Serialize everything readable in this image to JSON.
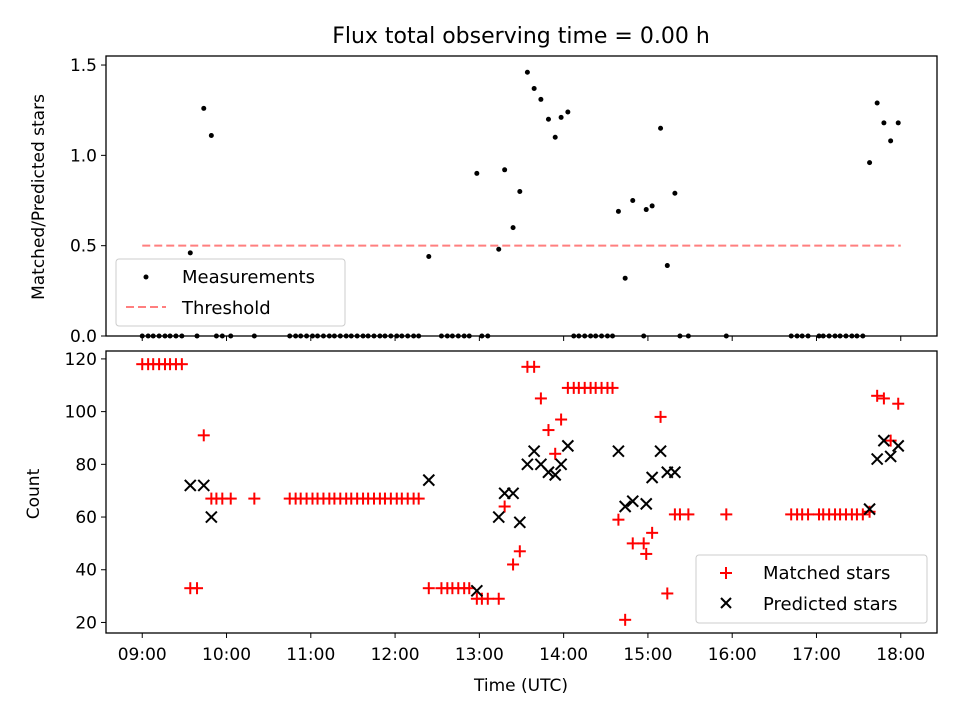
{
  "chart_data": [
    {
      "type": "scatter",
      "title": "Flux total observing time = 0.00 h",
      "xlabel": "",
      "ylabel": "Matched/Predicted stars",
      "xlim": [
        8.57,
        18.43
      ],
      "ylim": [
        0,
        1.55
      ],
      "x_tick_values": [
        9,
        10,
        11,
        12,
        13,
        14,
        15,
        16,
        17,
        18
      ],
      "y_ticks": [
        {
          "value": 0.0,
          "label": "0.0"
        },
        {
          "value": 0.5,
          "label": "0.5"
        },
        {
          "value": 1.0,
          "label": "1.0"
        },
        {
          "value": 1.5,
          "label": "1.5"
        }
      ],
      "grid": false,
      "legend_position": "lower-left",
      "legend": [
        {
          "label": "Measurements",
          "color": "#000000",
          "marker": "dot"
        },
        {
          "label": "Threshold",
          "color": "#ff7f7f",
          "marker": "dashed-line"
        }
      ],
      "threshold": {
        "value": 0.5,
        "x_range": [
          9,
          18
        ],
        "color": "#ff7f7f"
      },
      "series": [
        {
          "name": "Measurements",
          "color": "#000000",
          "points": [
            [
              9.0,
              0
            ],
            [
              9.07,
              0
            ],
            [
              9.13,
              0
            ],
            [
              9.2,
              0
            ],
            [
              9.27,
              0
            ],
            [
              9.33,
              0
            ],
            [
              9.4,
              0
            ],
            [
              9.47,
              0
            ],
            [
              9.57,
              0.46
            ],
            [
              9.65,
              0
            ],
            [
              9.73,
              1.26
            ],
            [
              9.82,
              1.11
            ],
            [
              9.88,
              0
            ],
            [
              9.95,
              0
            ],
            [
              10.05,
              0
            ],
            [
              10.33,
              0
            ],
            [
              10.75,
              0
            ],
            [
              10.82,
              0
            ],
            [
              10.88,
              0
            ],
            [
              10.95,
              0
            ],
            [
              11.02,
              0
            ],
            [
              11.08,
              0
            ],
            [
              11.15,
              0
            ],
            [
              11.22,
              0
            ],
            [
              11.28,
              0
            ],
            [
              11.35,
              0
            ],
            [
              11.42,
              0
            ],
            [
              11.48,
              0
            ],
            [
              11.55,
              0
            ],
            [
              11.62,
              0
            ],
            [
              11.68,
              0
            ],
            [
              11.75,
              0
            ],
            [
              11.82,
              0
            ],
            [
              11.88,
              0
            ],
            [
              11.95,
              0
            ],
            [
              12.02,
              0
            ],
            [
              12.08,
              0
            ],
            [
              12.15,
              0
            ],
            [
              12.22,
              0
            ],
            [
              12.28,
              0
            ],
            [
              12.4,
              0.44
            ],
            [
              12.55,
              0
            ],
            [
              12.62,
              0
            ],
            [
              12.68,
              0
            ],
            [
              12.75,
              0
            ],
            [
              12.82,
              0
            ],
            [
              12.88,
              0
            ],
            [
              12.97,
              0.9
            ],
            [
              13.03,
              0
            ],
            [
              13.1,
              0
            ],
            [
              13.23,
              0.48
            ],
            [
              13.3,
              0.92
            ],
            [
              13.4,
              0.6
            ],
            [
              13.48,
              0.8
            ],
            [
              13.57,
              1.46
            ],
            [
              13.65,
              1.37
            ],
            [
              13.73,
              1.31
            ],
            [
              13.82,
              1.2
            ],
            [
              13.9,
              1.1
            ],
            [
              13.97,
              1.21
            ],
            [
              14.05,
              1.24
            ],
            [
              14.12,
              0
            ],
            [
              14.18,
              0
            ],
            [
              14.25,
              0
            ],
            [
              14.32,
              0
            ],
            [
              14.38,
              0
            ],
            [
              14.45,
              0
            ],
            [
              14.52,
              0
            ],
            [
              14.58,
              0
            ],
            [
              14.65,
              0.69
            ],
            [
              14.73,
              0.32
            ],
            [
              14.82,
              0.75
            ],
            [
              14.95,
              0
            ],
            [
              14.98,
              0.7
            ],
            [
              15.05,
              0.72
            ],
            [
              15.15,
              1.15
            ],
            [
              15.23,
              0.39
            ],
            [
              15.32,
              0.79
            ],
            [
              15.38,
              0
            ],
            [
              15.48,
              0
            ],
            [
              15.93,
              0
            ],
            [
              16.7,
              0
            ],
            [
              16.77,
              0
            ],
            [
              16.83,
              0
            ],
            [
              16.9,
              0
            ],
            [
              17.03,
              0
            ],
            [
              17.08,
              0
            ],
            [
              17.15,
              0
            ],
            [
              17.22,
              0
            ],
            [
              17.28,
              0
            ],
            [
              17.35,
              0
            ],
            [
              17.42,
              0
            ],
            [
              17.48,
              0
            ],
            [
              17.55,
              0
            ],
            [
              17.63,
              0.96
            ],
            [
              17.72,
              1.29
            ],
            [
              17.8,
              1.18
            ],
            [
              17.88,
              1.08
            ],
            [
              17.97,
              1.18
            ]
          ]
        }
      ]
    },
    {
      "type": "scatter",
      "title": "",
      "xlabel": "Time (UTC)",
      "ylabel": "Count",
      "xlim": [
        8.57,
        18.43
      ],
      "ylim": [
        16,
        123
      ],
      "x_ticks": [
        {
          "value": 9,
          "label": "09:00"
        },
        {
          "value": 10,
          "label": "10:00"
        },
        {
          "value": 11,
          "label": "11:00"
        },
        {
          "value": 12,
          "label": "12:00"
        },
        {
          "value": 13,
          "label": "13:00"
        },
        {
          "value": 14,
          "label": "14:00"
        },
        {
          "value": 15,
          "label": "15:00"
        },
        {
          "value": 16,
          "label": "16:00"
        },
        {
          "value": 17,
          "label": "17:00"
        },
        {
          "value": 18,
          "label": "18:00"
        }
      ],
      "y_ticks": [
        {
          "value": 20,
          "label": "20"
        },
        {
          "value": 40,
          "label": "40"
        },
        {
          "value": 60,
          "label": "60"
        },
        {
          "value": 80,
          "label": "80"
        },
        {
          "value": 100,
          "label": "100"
        },
        {
          "value": 120,
          "label": "120"
        }
      ],
      "grid": false,
      "legend_position": "lower-right",
      "legend": [
        {
          "label": "Matched stars",
          "color": "#ff0000",
          "marker": "plus"
        },
        {
          "label": "Predicted stars",
          "color": "#000000",
          "marker": "x"
        }
      ],
      "series": [
        {
          "name": "Matched stars",
          "color": "#ff0000",
          "marker": "plus",
          "points": [
            [
              9.0,
              118
            ],
            [
              9.07,
              118
            ],
            [
              9.13,
              118
            ],
            [
              9.2,
              118
            ],
            [
              9.27,
              118
            ],
            [
              9.33,
              118
            ],
            [
              9.4,
              118
            ],
            [
              9.47,
              118
            ],
            [
              9.57,
              33
            ],
            [
              9.65,
              33
            ],
            [
              9.73,
              91
            ],
            [
              9.82,
              67
            ],
            [
              9.88,
              67
            ],
            [
              9.95,
              67
            ],
            [
              10.05,
              67
            ],
            [
              10.33,
              67
            ],
            [
              10.75,
              67
            ],
            [
              10.82,
              67
            ],
            [
              10.88,
              67
            ],
            [
              10.95,
              67
            ],
            [
              11.02,
              67
            ],
            [
              11.08,
              67
            ],
            [
              11.15,
              67
            ],
            [
              11.22,
              67
            ],
            [
              11.28,
              67
            ],
            [
              11.35,
              67
            ],
            [
              11.42,
              67
            ],
            [
              11.48,
              67
            ],
            [
              11.55,
              67
            ],
            [
              11.62,
              67
            ],
            [
              11.68,
              67
            ],
            [
              11.75,
              67
            ],
            [
              11.82,
              67
            ],
            [
              11.88,
              67
            ],
            [
              11.95,
              67
            ],
            [
              12.02,
              67
            ],
            [
              12.08,
              67
            ],
            [
              12.15,
              67
            ],
            [
              12.22,
              67
            ],
            [
              12.28,
              67
            ],
            [
              12.4,
              33
            ],
            [
              12.55,
              33
            ],
            [
              12.62,
              33
            ],
            [
              12.68,
              33
            ],
            [
              12.75,
              33
            ],
            [
              12.82,
              33
            ],
            [
              12.88,
              33
            ],
            [
              12.97,
              29
            ],
            [
              13.03,
              29
            ],
            [
              13.1,
              29
            ],
            [
              13.23,
              29
            ],
            [
              13.3,
              64
            ],
            [
              13.4,
              42
            ],
            [
              13.48,
              47
            ],
            [
              13.57,
              117
            ],
            [
              13.65,
              117
            ],
            [
              13.73,
              105
            ],
            [
              13.82,
              93
            ],
            [
              13.9,
              84
            ],
            [
              13.97,
              97
            ],
            [
              14.05,
              109
            ],
            [
              14.12,
              109
            ],
            [
              14.18,
              109
            ],
            [
              14.25,
              109
            ],
            [
              14.32,
              109
            ],
            [
              14.38,
              109
            ],
            [
              14.45,
              109
            ],
            [
              14.52,
              109
            ],
            [
              14.58,
              109
            ],
            [
              14.65,
              59
            ],
            [
              14.73,
              21
            ],
            [
              14.82,
              50
            ],
            [
              14.95,
              50
            ],
            [
              14.98,
              46
            ],
            [
              15.05,
              54
            ],
            [
              15.15,
              98
            ],
            [
              15.23,
              31
            ],
            [
              15.32,
              61
            ],
            [
              15.38,
              61
            ],
            [
              15.48,
              61
            ],
            [
              15.93,
              61
            ],
            [
              16.7,
              61
            ],
            [
              16.77,
              61
            ],
            [
              16.83,
              61
            ],
            [
              16.9,
              61
            ],
            [
              17.03,
              61
            ],
            [
              17.08,
              61
            ],
            [
              17.15,
              61
            ],
            [
              17.22,
              61
            ],
            [
              17.28,
              61
            ],
            [
              17.35,
              61
            ],
            [
              17.42,
              61
            ],
            [
              17.48,
              61
            ],
            [
              17.55,
              61
            ],
            [
              17.63,
              62
            ],
            [
              17.72,
              106
            ],
            [
              17.8,
              105
            ],
            [
              17.88,
              89
            ],
            [
              17.97,
              103
            ]
          ]
        },
        {
          "name": "Predicted stars",
          "color": "#000000",
          "marker": "x",
          "points": [
            [
              9.57,
              72
            ],
            [
              9.73,
              72
            ],
            [
              9.82,
              60
            ],
            [
              12.4,
              74
            ],
            [
              12.97,
              32
            ],
            [
              13.23,
              60
            ],
            [
              13.3,
              69
            ],
            [
              13.4,
              69
            ],
            [
              13.48,
              58
            ],
            [
              13.57,
              80
            ],
            [
              13.65,
              85
            ],
            [
              13.73,
              80
            ],
            [
              13.82,
              77
            ],
            [
              13.9,
              76
            ],
            [
              13.97,
              80
            ],
            [
              14.05,
              87
            ],
            [
              14.65,
              85
            ],
            [
              14.73,
              64
            ],
            [
              14.82,
              66
            ],
            [
              14.98,
              65
            ],
            [
              15.05,
              75
            ],
            [
              15.15,
              85
            ],
            [
              15.23,
              77
            ],
            [
              15.32,
              77
            ],
            [
              17.63,
              63
            ],
            [
              17.72,
              82
            ],
            [
              17.8,
              89
            ],
            [
              17.88,
              83
            ],
            [
              17.97,
              87
            ]
          ]
        }
      ]
    }
  ]
}
